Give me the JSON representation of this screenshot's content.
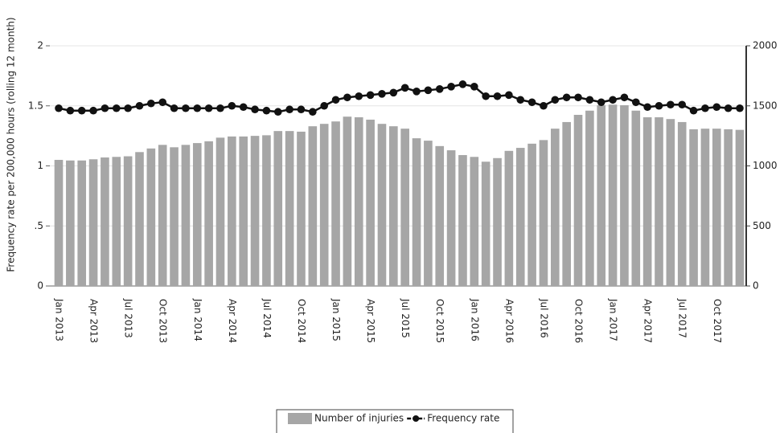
{
  "chart_data": {
    "type": "bar",
    "y_label": "Frequency rate per 200,000 hours (rolling 12 month)",
    "categories": [
      "Jan 2013",
      null,
      null,
      "Apr 2013",
      null,
      null,
      "Jul 2013",
      null,
      null,
      "Oct 2013",
      null,
      null,
      "Jan 2014",
      null,
      null,
      "Apr 2014",
      null,
      null,
      "Jul 2014",
      null,
      null,
      "Oct 2014",
      null,
      null,
      "Jan 2015",
      null,
      null,
      "Apr 2015",
      null,
      null,
      "Jul 2015",
      null,
      null,
      "Oct 2015",
      null,
      null,
      "Jan 2016",
      null,
      null,
      "Apr 2016",
      null,
      null,
      "Jul 2016",
      null,
      null,
      "Oct 2016",
      null,
      null,
      "Jan 2017",
      null,
      null,
      "Apr 2017",
      null,
      null,
      "Jul 2017",
      null,
      null,
      "Oct 2017",
      null,
      null
    ],
    "series": [
      {
        "name": "Number of injuries",
        "type": "bar",
        "axis": "y2",
        "color": "#a6a6a6",
        "values": [
          1050,
          1045,
          1045,
          1055,
          1070,
          1075,
          1080,
          1115,
          1145,
          1175,
          1155,
          1175,
          1190,
          1205,
          1235,
          1245,
          1245,
          1250,
          1255,
          1290,
          1290,
          1285,
          1330,
          1350,
          1370,
          1410,
          1405,
          1385,
          1350,
          1330,
          1310,
          1230,
          1210,
          1165,
          1130,
          1090,
          1075,
          1035,
          1065,
          1125,
          1150,
          1185,
          1215,
          1310,
          1365,
          1425,
          1460,
          1505,
          1510,
          1505,
          1460,
          1405,
          1405,
          1390,
          1365,
          1305,
          1310,
          1310,
          1305,
          1300
        ]
      },
      {
        "name": "Frequency rate",
        "type": "line",
        "color": "#111111",
        "values": [
          1.48,
          1.46,
          1.46,
          1.46,
          1.48,
          1.48,
          1.48,
          1.5,
          1.52,
          1.53,
          1.48,
          1.48,
          1.48,
          1.48,
          1.48,
          1.5,
          1.49,
          1.47,
          1.46,
          1.45,
          1.47,
          1.47,
          1.45,
          1.5,
          1.55,
          1.57,
          1.58,
          1.59,
          1.6,
          1.61,
          1.65,
          1.62,
          1.63,
          1.64,
          1.66,
          1.68,
          1.66,
          1.58,
          1.58,
          1.59,
          1.55,
          1.53,
          1.5,
          1.55,
          1.57,
          1.57,
          1.55,
          1.53,
          1.55,
          1.57,
          1.53,
          1.49,
          1.5,
          1.51,
          1.51,
          1.46,
          1.48,
          1.49,
          1.48,
          1.48
        ]
      }
    ],
    "ylim": [
      0,
      2
    ],
    "yticks": [
      0,
      {
        "value": 0.5,
        "label": ".5"
      },
      1,
      1.5,
      2
    ],
    "y2lim": [
      0,
      2000
    ],
    "y2ticks": [
      0,
      500,
      1000,
      1500,
      2000
    ],
    "grid": true
  }
}
